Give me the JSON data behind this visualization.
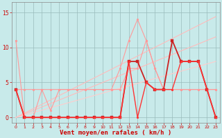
{
  "bg_color": "#c8eaea",
  "grid_color": "#99bbbb",
  "xlabel": "Vent moyen/en rafales ( km/h )",
  "xlabel_color": "#cc0000",
  "xlabel_fontsize": 6.5,
  "ytick_vals": [
    0,
    5,
    10,
    15
  ],
  "xtick_vals": [
    0,
    1,
    2,
    3,
    4,
    5,
    6,
    7,
    8,
    9,
    10,
    11,
    12,
    13,
    14,
    15,
    16,
    17,
    18,
    19,
    20,
    21,
    22,
    23
  ],
  "xlim": [
    -0.5,
    23.5
  ],
  "ylim": [
    -0.8,
    16.5
  ],
  "series": [
    {
      "x": [
        0,
        23
      ],
      "y": [
        0,
        14.4
      ],
      "color": "#ffbbbb",
      "lw": 0.8,
      "marker": null
    },
    {
      "x": [
        0,
        23
      ],
      "y": [
        0,
        11.5
      ],
      "color": "#ffbbbb",
      "lw": 0.8,
      "marker": null
    },
    {
      "x": [
        0,
        23
      ],
      "y": [
        0,
        8.0
      ],
      "color": "#ffcccc",
      "lw": 0.8,
      "marker": null
    },
    {
      "x": [
        0,
        1,
        2,
        3,
        4,
        5,
        6,
        7,
        8,
        9,
        10,
        11,
        12,
        13,
        14,
        15,
        16,
        17,
        18,
        19,
        20,
        21,
        22,
        23
      ],
      "y": [
        4,
        4,
        4,
        4,
        4,
        4,
        4,
        4,
        4,
        4,
        4,
        4,
        4,
        7,
        7,
        11,
        7,
        4,
        4,
        4,
        4,
        4,
        4,
        4
      ],
      "color": "#ff9999",
      "lw": 0.8,
      "marker": "o",
      "ms": 2.0
    },
    {
      "x": [
        0,
        1,
        2,
        3,
        4,
        5,
        6,
        7,
        8,
        9,
        10,
        11,
        12,
        13,
        14,
        15,
        16,
        17,
        18,
        19,
        20,
        21,
        22,
        23
      ],
      "y": [
        11,
        0,
        0,
        4,
        1,
        4,
        4,
        4,
        4,
        4,
        4,
        4,
        7,
        11,
        14,
        11,
        7,
        4,
        4,
        4,
        4,
        4,
        4,
        4
      ],
      "color": "#ff9999",
      "lw": 0.8,
      "marker": "o",
      "ms": 2.0
    },
    {
      "x": [
        0,
        1,
        2,
        3,
        4,
        5,
        6,
        7,
        8,
        9,
        10,
        11,
        12,
        13,
        14,
        15,
        16,
        17,
        18,
        19,
        20,
        21,
        22,
        23
      ],
      "y": [
        4,
        0,
        0,
        0,
        0,
        0,
        0,
        0,
        0,
        0,
        0,
        0,
        0,
        8,
        8,
        5,
        4,
        4,
        11,
        8,
        8,
        8,
        4,
        0
      ],
      "color": "#cc2222",
      "lw": 1.3,
      "marker": "s",
      "ms": 2.2
    },
    {
      "x": [
        0,
        1,
        2,
        3,
        4,
        5,
        6,
        7,
        8,
        9,
        10,
        11,
        12,
        13,
        14,
        15,
        16,
        17,
        18,
        19,
        20,
        21,
        22,
        23
      ],
      "y": [
        4,
        0,
        0,
        0,
        0,
        0,
        0,
        0,
        0,
        0,
        0,
        0,
        0,
        8,
        0,
        5,
        4,
        4,
        4,
        8,
        8,
        8,
        4,
        0
      ],
      "color": "#ff3333",
      "lw": 1.0,
      "marker": "o",
      "ms": 2.0
    }
  ]
}
